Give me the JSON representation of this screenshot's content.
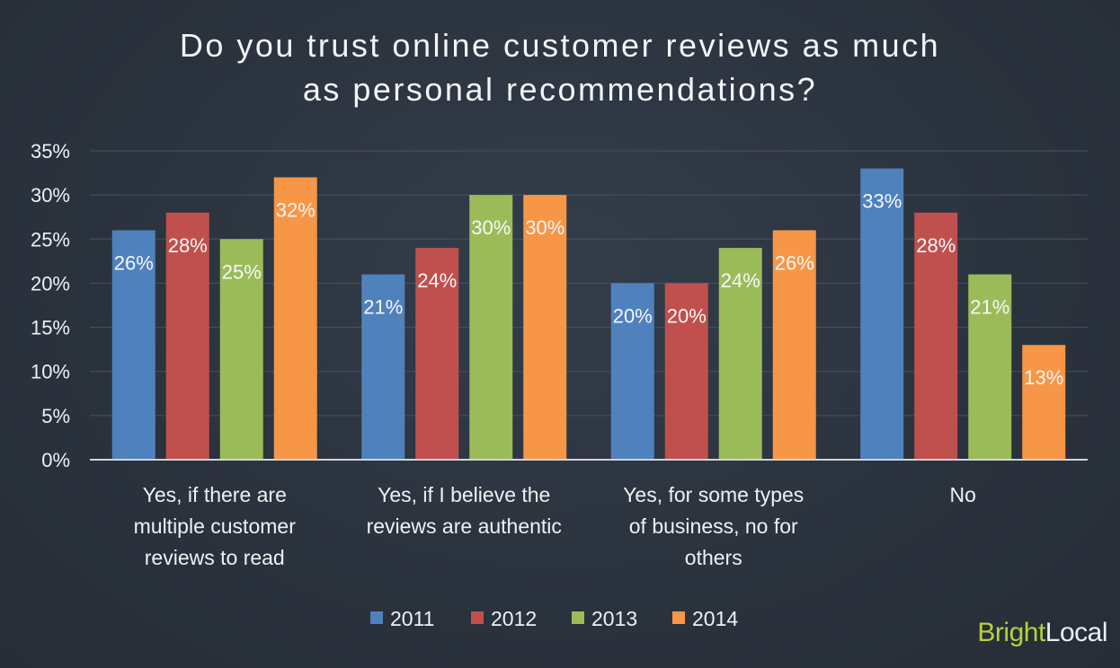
{
  "chart_data": {
    "type": "bar",
    "title": [
      "Do you trust online customer reviews as much",
      "as personal recommendations?"
    ],
    "categories": [
      [
        "Yes, if there are",
        "multiple customer",
        "reviews to read"
      ],
      [
        "Yes, if I believe the",
        "reviews are authentic"
      ],
      [
        "Yes, for some types",
        "of business, no for",
        "others"
      ],
      [
        "No"
      ]
    ],
    "series": [
      {
        "name": "2011",
        "color": "#4f81bd",
        "values": [
          26,
          21,
          20,
          33
        ],
        "labels": [
          "26%",
          "21%",
          "20%",
          "33%"
        ]
      },
      {
        "name": "2012",
        "color": "#c0504d",
        "values": [
          28,
          24,
          20,
          28
        ],
        "labels": [
          "28%",
          "24%",
          "20%",
          "28%"
        ]
      },
      {
        "name": "2013",
        "color": "#9bbb59",
        "values": [
          25,
          30,
          24,
          21
        ],
        "labels": [
          "25%",
          "30%",
          "24%",
          "21%"
        ]
      },
      {
        "name": "2014",
        "color": "#f79646",
        "values": [
          32,
          30,
          26,
          13
        ],
        "labels": [
          "32%",
          "30%",
          "26%",
          "13%"
        ]
      }
    ],
    "ylim": [
      0,
      35
    ],
    "yticks": [
      0,
      5,
      10,
      15,
      20,
      25,
      30,
      35
    ],
    "ytick_labels": [
      "0%",
      "5%",
      "10%",
      "15%",
      "20%",
      "25%",
      "30%",
      "35%"
    ],
    "grid": true,
    "legend_position": "bottom"
  },
  "brand": {
    "part1": "Bright",
    "part2": "Local"
  }
}
